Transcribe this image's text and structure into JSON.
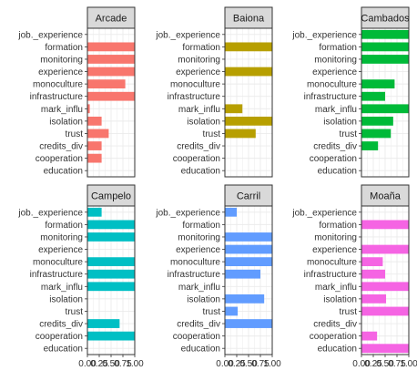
{
  "chart_data": {
    "type": "bar",
    "orientation": "horizontal",
    "faceted": true,
    "facet_layout": {
      "rows": 2,
      "cols": 3
    },
    "categories": [
      "job._experience",
      "formation",
      "monitoring",
      "experience",
      "monoculture",
      "infrastructure",
      "mark_influ",
      "isolation",
      "trust",
      "credits_div",
      "cooperation",
      "education"
    ],
    "x_ticks": [
      "0.00",
      "0.25",
      "0.50",
      "0.75",
      "1.00"
    ],
    "xlim": [
      0,
      1
    ],
    "grid": true,
    "legend": "none",
    "panels": [
      {
        "title": "Arcade",
        "color": "#F8766D",
        "values": {
          "job._experience": 0,
          "formation": 1.0,
          "monitoring": 1.0,
          "experience": 1.0,
          "monoculture": 0.8,
          "infrastructure": 1.0,
          "mark_influ": 0.05,
          "isolation": 0.3,
          "trust": 0.45,
          "credits_div": 0.3,
          "cooperation": 0.3,
          "education": 0
        }
      },
      {
        "title": "Baiona",
        "color": "#B79F00",
        "values": {
          "job._experience": 0,
          "formation": 1.0,
          "monitoring": 0,
          "experience": 1.0,
          "monoculture": 0,
          "infrastructure": 0,
          "mark_influ": 0.37,
          "isolation": 1.0,
          "trust": 0.65,
          "credits_div": 0,
          "cooperation": 0,
          "education": 0
        }
      },
      {
        "title": "Cambados",
        "color": "#00BA38",
        "values": {
          "job._experience": 1.0,
          "formation": 1.0,
          "monitoring": 1.0,
          "experience": 0,
          "monoculture": 0.7,
          "infrastructure": 0.5,
          "mark_influ": 1.0,
          "isolation": 0.67,
          "trust": 0.62,
          "credits_div": 0.35,
          "cooperation": 0,
          "education": 0
        }
      },
      {
        "title": "Campelo",
        "color": "#00BFC4",
        "values": {
          "job._experience": 0.3,
          "formation": 1.0,
          "monitoring": 1.0,
          "experience": 0,
          "monoculture": 1.0,
          "infrastructure": 1.0,
          "mark_influ": 1.0,
          "isolation": 0,
          "trust": 0,
          "credits_div": 0.68,
          "cooperation": 1.0,
          "education": 0
        }
      },
      {
        "title": "Carril",
        "color": "#619CFF",
        "values": {
          "job._experience": 0.25,
          "formation": 0,
          "monitoring": 1.0,
          "experience": 1.0,
          "monoculture": 1.0,
          "infrastructure": 0.75,
          "mark_influ": 0,
          "isolation": 0.83,
          "trust": 0.27,
          "credits_div": 1.0,
          "cooperation": 0,
          "education": 0
        }
      },
      {
        "title": "Moaña",
        "color": "#F564E3",
        "values": {
          "job._experience": 0,
          "formation": 1.0,
          "monitoring": 0,
          "experience": 1.0,
          "monoculture": 0.45,
          "infrastructure": 0.5,
          "mark_influ": 1.0,
          "isolation": 0.52,
          "trust": 1.0,
          "credits_div": 0,
          "cooperation": 0.33,
          "education": 1.0
        }
      }
    ]
  }
}
